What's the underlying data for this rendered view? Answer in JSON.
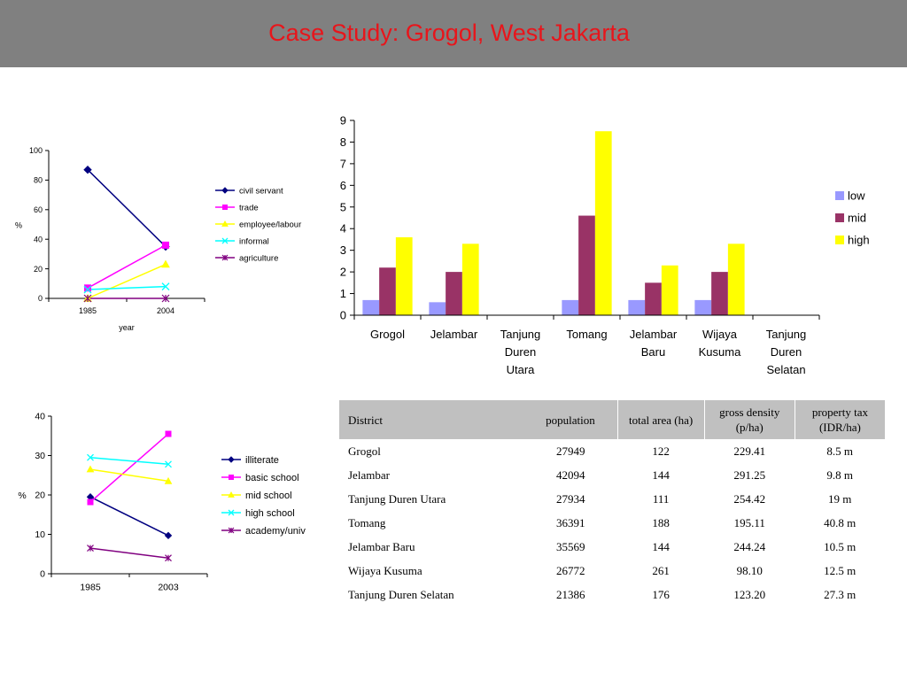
{
  "slide": {
    "title": "Case Study: Grogol, West Jakarta"
  },
  "chart_data": [
    {
      "id": "occupation",
      "type": "line",
      "x": [
        "1985",
        "2004"
      ],
      "xlabel": "year",
      "ylabel": "%",
      "ylim": [
        0,
        100
      ],
      "yticks": [
        0,
        20,
        40,
        60,
        80,
        100
      ],
      "legend_position": "right",
      "grid": false,
      "series": [
        {
          "name": "civil servant",
          "values": [
            87,
            35
          ],
          "color": "#000080",
          "marker": "diamond"
        },
        {
          "name": "trade",
          "values": [
            7,
            36
          ],
          "color": "#ff00ff",
          "marker": "square"
        },
        {
          "name": "employee/labour",
          "values": [
            0,
            23
          ],
          "color": "#ffff00",
          "marker": "triangle"
        },
        {
          "name": "informal",
          "values": [
            6,
            8
          ],
          "color": "#00ffff",
          "marker": "x"
        },
        {
          "name": "agriculture",
          "values": [
            0,
            0
          ],
          "color": "#800080",
          "marker": "star"
        }
      ]
    },
    {
      "id": "density",
      "type": "bar",
      "categories": [
        "Grogol",
        "Jelambar",
        "Tanjung Duren Utara",
        "Tomang",
        "Jelambar Baru",
        "Wijaya Kusuma",
        "Tanjung Duren Selatan"
      ],
      "category_lines": [
        [
          "Grogol"
        ],
        [
          "Jelambar"
        ],
        [
          "Tanjung",
          "Duren",
          "Utara"
        ],
        [
          "Tomang"
        ],
        [
          "Jelambar",
          "Baru"
        ],
        [
          "Wijaya",
          "Kusuma"
        ],
        [
          "Tanjung",
          "Duren",
          "Selatan"
        ]
      ],
      "ylim": [
        0,
        9
      ],
      "yticks": [
        0,
        1,
        2,
        3,
        4,
        5,
        6,
        7,
        8,
        9
      ],
      "legend_position": "right",
      "grid": false,
      "series": [
        {
          "name": "low",
          "values": [
            0.7,
            0.6,
            0,
            0.7,
            0.7,
            0.7,
            0
          ],
          "color": "#9999ff"
        },
        {
          "name": "mid",
          "values": [
            2.2,
            2.0,
            0,
            4.6,
            1.5,
            2.0,
            0
          ],
          "color": "#993366"
        },
        {
          "name": "high",
          "values": [
            3.6,
            3.3,
            0,
            8.5,
            2.3,
            3.3,
            0
          ],
          "color": "#ffff00"
        }
      ]
    },
    {
      "id": "education",
      "type": "line",
      "x": [
        "1985",
        "2003"
      ],
      "ylabel": "%",
      "ylim": [
        0,
        40
      ],
      "yticks": [
        0,
        10,
        20,
        30,
        40
      ],
      "legend_position": "right",
      "grid": false,
      "series": [
        {
          "name": "illiterate",
          "values": [
            19.5,
            9.7
          ],
          "color": "#000080",
          "marker": "diamond"
        },
        {
          "name": "basic school",
          "values": [
            18.2,
            35.5
          ],
          "color": "#ff00ff",
          "marker": "square"
        },
        {
          "name": "mid school",
          "values": [
            26.5,
            23.5
          ],
          "color": "#ffff00",
          "marker": "triangle"
        },
        {
          "name": "high school",
          "values": [
            29.5,
            27.8
          ],
          "color": "#00ffff",
          "marker": "x"
        },
        {
          "name": "academy/univ",
          "values": [
            6.5,
            4.0
          ],
          "color": "#800080",
          "marker": "star"
        }
      ]
    }
  ],
  "table": {
    "headers": [
      "District",
      "population",
      "total area (ha)",
      "gross density (p/ha)",
      "property tax (IDR/ha)"
    ],
    "rows": [
      [
        "Grogol",
        "27949",
        "122",
        "229.41",
        "8.5 m"
      ],
      [
        "Jelambar",
        "42094",
        "144",
        "291.25",
        "9.8 m"
      ],
      [
        "Tanjung Duren Utara",
        "27934",
        "111",
        "254.42",
        "19 m"
      ],
      [
        "Tomang",
        "36391",
        "188",
        "195.11",
        "40.8 m"
      ],
      [
        "Jelambar Baru",
        "35569",
        "144",
        "244.24",
        "10.5 m"
      ],
      [
        "Wijaya Kusuma",
        "26772",
        "261",
        "98.10",
        "12.5 m"
      ],
      [
        "Tanjung Duren Selatan",
        "21386",
        "176",
        "123.20",
        "27.3 m"
      ]
    ]
  }
}
